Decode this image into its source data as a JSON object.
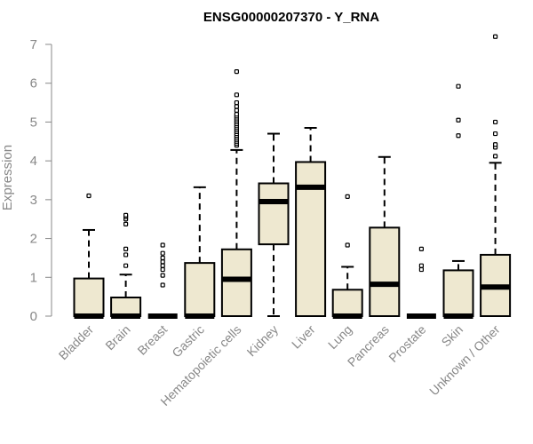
{
  "chart_data": {
    "type": "boxplot",
    "title": "ENSG00000207370 - Y_RNA",
    "xlabel": "",
    "ylabel": "Expression",
    "ylim": [
      0,
      7
    ],
    "yticks": [
      0,
      1,
      2,
      3,
      4,
      5,
      6,
      7
    ],
    "grid": false,
    "colors": {
      "box_fill": "#EEE8D0",
      "stroke": "#000000",
      "axis": "#888888"
    },
    "categories": [
      "Bladder",
      "Brain",
      "Breast",
      "Gastric",
      "Hematopoietic cells",
      "Kidney",
      "Liver",
      "Lung",
      "Pancreas",
      "Prostate",
      "Skin",
      "Unknown / Other"
    ],
    "boxes": [
      {
        "min": 0,
        "q1": 0,
        "median": 0,
        "q3": 0.97,
        "max": 2.22,
        "outliers": [
          3.1
        ]
      },
      {
        "min": 0,
        "q1": 0,
        "median": 0,
        "q3": 0.48,
        "max": 1.07,
        "outliers": [
          1.3,
          1.58,
          1.73,
          2.37,
          2.5,
          2.56,
          2.6
        ]
      },
      {
        "min": 0,
        "q1": 0,
        "median": 0,
        "q3": 0,
        "max": 0,
        "outliers": [
          0.8,
          1.05,
          1.2,
          1.3,
          1.4,
          1.5,
          1.62,
          1.83
        ]
      },
      {
        "min": 0,
        "q1": 0,
        "median": 0,
        "q3": 1.37,
        "max": 3.32,
        "outliers": []
      },
      {
        "min": 0,
        "q1": 0,
        "median": 0.95,
        "q3": 1.72,
        "max": 4.28,
        "outliers": [
          4.4,
          4.45,
          4.5,
          4.55,
          4.6,
          4.65,
          4.7,
          4.75,
          4.8,
          4.85,
          4.9,
          4.95,
          5.0,
          5.05,
          5.1,
          5.15,
          5.2,
          5.3,
          5.4,
          5.5,
          5.7,
          6.3
        ]
      },
      {
        "min": 0,
        "q1": 1.85,
        "median": 2.95,
        "q3": 3.42,
        "max": 4.7,
        "outliers": []
      },
      {
        "min": 0,
        "q1": 0,
        "median": 3.32,
        "q3": 3.97,
        "max": 4.85,
        "outliers": []
      },
      {
        "min": 0,
        "q1": 0,
        "median": 0,
        "q3": 0.68,
        "max": 1.27,
        "outliers": [
          1.83,
          3.08
        ]
      },
      {
        "min": 0,
        "q1": 0,
        "median": 0.82,
        "q3": 2.28,
        "max": 4.1,
        "outliers": []
      },
      {
        "min": 0,
        "q1": 0,
        "median": 0,
        "q3": 0,
        "max": 0,
        "outliers": [
          1.2,
          1.3,
          1.73
        ]
      },
      {
        "min": 0,
        "q1": 0,
        "median": 0,
        "q3": 1.18,
        "max": 1.42,
        "outliers": [
          4.65,
          5.05,
          5.92
        ]
      },
      {
        "min": 0,
        "q1": 0,
        "median": 0.75,
        "q3": 1.58,
        "max": 3.95,
        "outliers": [
          4.12,
          4.35,
          4.42,
          4.7,
          5.0,
          7.2
        ]
      }
    ]
  }
}
